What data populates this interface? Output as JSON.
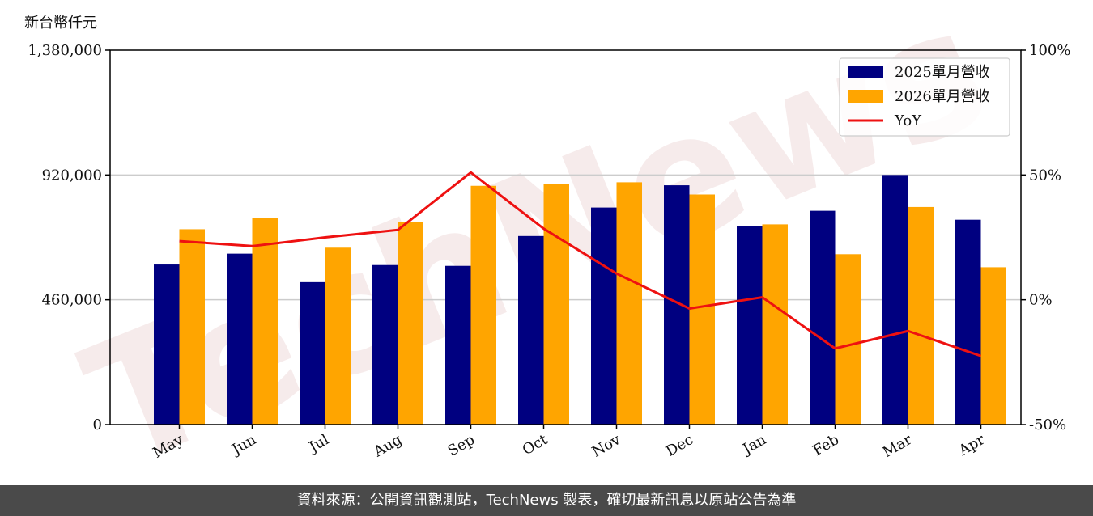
{
  "chart_data": {
    "type": "bar",
    "y_unit_label": "新台幣仟元",
    "categories": [
      "May",
      "Jun",
      "Jul",
      "Aug",
      "Sep",
      "Oct",
      "Nov",
      "Dec",
      "Jan",
      "Feb",
      "Mar",
      "Apr"
    ],
    "series": [
      {
        "name": "2025單月營收",
        "type": "bar",
        "axis": "left",
        "color": "#000080",
        "values": [
          590000,
          630000,
          525000,
          588000,
          585000,
          695000,
          800000,
          882000,
          732000,
          788000,
          920000,
          755000
        ]
      },
      {
        "name": "2026單月營收",
        "type": "bar",
        "axis": "left",
        "color": "#FFA500",
        "values": [
          720000,
          763000,
          652000,
          748000,
          880000,
          887000,
          893000,
          848000,
          738000,
          628000,
          802000,
          580000
        ]
      },
      {
        "name": "YoY",
        "type": "line",
        "axis": "right",
        "color": "#EE1111",
        "values": [
          23.5,
          21.5,
          25.0,
          28.0,
          51.0,
          28.5,
          10.5,
          -3.5,
          1.0,
          -19.5,
          -12.5,
          -22.5
        ]
      }
    ],
    "left_axis": {
      "ylim": [
        0,
        1380000
      ],
      "ticks": [
        0,
        460000,
        920000,
        1380000
      ],
      "tick_labels": [
        "0",
        "460,000",
        "920,000",
        "1,380,000"
      ]
    },
    "right_axis": {
      "ylim": [
        -50,
        100
      ],
      "ticks": [
        -50,
        0,
        50,
        100
      ],
      "tick_labels": [
        "-50%",
        "0%",
        "50%",
        "100%"
      ]
    },
    "grid": "horizontal",
    "legend_position": "top-right"
  },
  "watermark": "TechNews",
  "footer": {
    "text": "資料來源：公開資訊觀測站，TechNews 製表，確切最新訊息以原站公告為準"
  },
  "colors": {
    "footer_bg": "#4a4a4a",
    "grid": "#cccccc"
  }
}
